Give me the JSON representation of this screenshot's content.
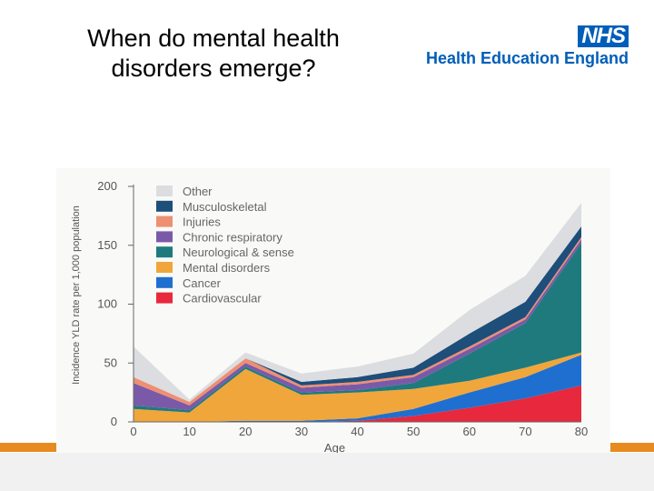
{
  "slide": {
    "title_line1": "When do mental health",
    "title_line2": "disorders emerge?"
  },
  "logo": {
    "nhs": "NHS",
    "org": "Health Education England",
    "color": "#005EB8"
  },
  "accent_color": "#E88B1F",
  "chart_data": {
    "type": "area",
    "stacked": true,
    "title": "",
    "xlabel": "Age",
    "ylabel": "Incidence YLD rate per 1,000 population",
    "xlim": [
      0,
      80
    ],
    "ylim": [
      0,
      200
    ],
    "x_ticks": [
      0,
      10,
      20,
      30,
      40,
      50,
      60,
      70,
      80
    ],
    "y_ticks": [
      0,
      50,
      100,
      150,
      200
    ],
    "x_tick_labels": [
      "0",
      "10",
      "20",
      "30",
      "40",
      "50",
      "60",
      "70",
      "80"
    ],
    "y_tick_labels": [
      "0",
      "50",
      "100",
      "150",
      "200"
    ],
    "x": [
      0,
      10,
      20,
      30,
      40,
      50,
      60,
      70,
      80
    ],
    "series": [
      {
        "name": "Cardiovascular",
        "color": "#E8283C",
        "values": [
          0,
          0,
          0,
          0,
          1,
          5,
          12,
          20,
          31
        ]
      },
      {
        "name": "Cancer",
        "color": "#1F6FD0",
        "values": [
          0,
          0,
          1,
          1,
          2,
          6,
          13,
          18,
          26
        ]
      },
      {
        "name": "Mental disorders",
        "color": "#F0A63A",
        "values": [
          11,
          8,
          44,
          22,
          22,
          17,
          10,
          8,
          2
        ]
      },
      {
        "name": "Neurological & sense",
        "color": "#1F7A7E",
        "values": [
          3,
          2,
          2,
          2,
          2,
          5,
          23,
          38,
          93
        ]
      },
      {
        "name": "Chronic respiratory",
        "color": "#7A5AA8",
        "values": [
          19,
          4,
          3,
          4,
          5,
          5,
          4,
          3,
          3
        ]
      },
      {
        "name": "Injuries",
        "color": "#EE8F72",
        "values": [
          5,
          3,
          4,
          2,
          2,
          2,
          2,
          2,
          2
        ]
      },
      {
        "name": "Musculoskeletal",
        "color": "#1E4E7A",
        "values": [
          0,
          0,
          0,
          3,
          4,
          6,
          11,
          13,
          9
        ]
      },
      {
        "name": "Other",
        "color": "#DCDDE0",
        "values": [
          26,
          2,
          5,
          7,
          9,
          12,
          20,
          22,
          20
        ]
      }
    ],
    "legend_order": [
      "Other",
      "Musculoskeletal",
      "Injuries",
      "Chronic respiratory",
      "Neurological & sense",
      "Mental disorders",
      "Cancer",
      "Cardiovascular"
    ],
    "legend_position": "top-left",
    "grid": false
  }
}
